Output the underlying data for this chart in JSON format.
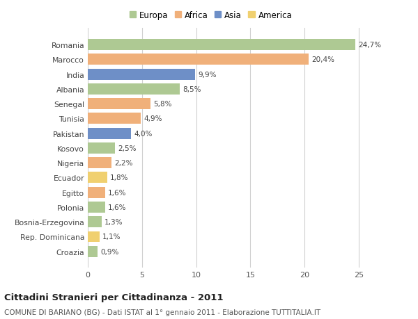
{
  "countries": [
    "Romania",
    "Marocco",
    "India",
    "Albania",
    "Senegal",
    "Tunisia",
    "Pakistan",
    "Kosovo",
    "Nigeria",
    "Ecuador",
    "Egitto",
    "Polonia",
    "Bosnia-Erzegovina",
    "Rep. Dominicana",
    "Croazia"
  ],
  "values": [
    24.7,
    20.4,
    9.9,
    8.5,
    5.8,
    4.9,
    4.0,
    2.5,
    2.2,
    1.8,
    1.6,
    1.6,
    1.3,
    1.1,
    0.9
  ],
  "labels": [
    "24,7%",
    "20,4%",
    "9,9%",
    "8,5%",
    "5,8%",
    "4,9%",
    "4,0%",
    "2,5%",
    "2,2%",
    "1,8%",
    "1,6%",
    "1,6%",
    "1,3%",
    "1,1%",
    "0,9%"
  ],
  "continents": [
    "Europa",
    "Africa",
    "Asia",
    "Europa",
    "Africa",
    "Africa",
    "Asia",
    "Europa",
    "Africa",
    "America",
    "Africa",
    "Europa",
    "Europa",
    "America",
    "Europa"
  ],
  "colors": {
    "Europa": "#aec993",
    "Africa": "#f0b07a",
    "Asia": "#6e8fc7",
    "America": "#f0d070"
  },
  "title": "Cittadini Stranieri per Cittadinanza - 2011",
  "subtitle": "COMUNE DI BARIANO (BG) - Dati ISTAT al 1° gennaio 2011 - Elaborazione TUTTITALIA.IT",
  "xlim": [
    0,
    27
  ],
  "xticks": [
    0,
    5,
    10,
    15,
    20,
    25
  ],
  "background_color": "#ffffff",
  "grid_color": "#d0d0d0",
  "bar_height": 0.75,
  "label_fontsize": 7.5,
  "title_fontsize": 9.5,
  "subtitle_fontsize": 7.5,
  "tick_fontsize": 8,
  "ylabel_fontsize": 7.8,
  "legend_fontsize": 8.5
}
